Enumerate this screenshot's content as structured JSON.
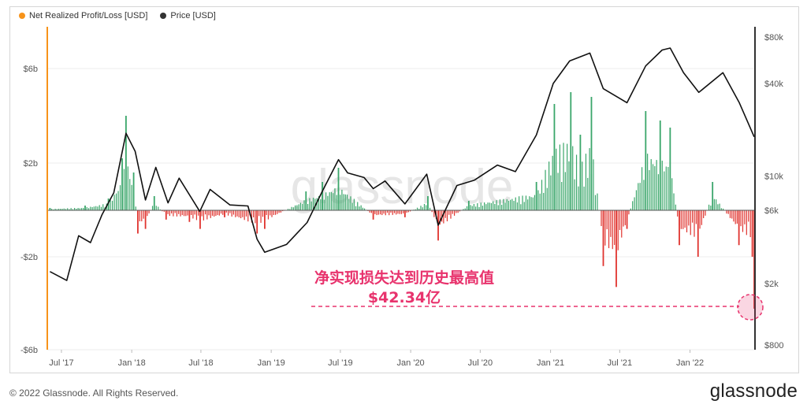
{
  "legend": [
    {
      "label": "Net Realized Profit/Loss [USD]",
      "color": "#f7931a"
    },
    {
      "label": "Price [USD]",
      "color": "#333333"
    }
  ],
  "watermark": "glassnode",
  "annotation": {
    "line1": "净实现损失达到历史最高值",
    "line2": "$42.34亿",
    "color": "#e8336d"
  },
  "footer": {
    "copyright": "© 2022 Glassnode. All Rights Reserved.",
    "logo": "glassnode"
  },
  "chart_data": {
    "type": "bar+line",
    "x_ticks": [
      "Jul '17",
      "Jan '18",
      "Jul '18",
      "Jan '19",
      "Jul '19",
      "Jan '20",
      "Jul '20",
      "Jan '21",
      "Jul '21",
      "Jan '22"
    ],
    "left_axis": {
      "label": "",
      "ticks": [
        "$6b",
        "$2b",
        "-$2b",
        "-$6b"
      ],
      "ylim": [
        -6,
        6
      ],
      "unit": "billion USD"
    },
    "right_axis": {
      "label": "",
      "ticks": [
        "$80k",
        "$40k",
        "$10k",
        "$6k",
        "$2k",
        "$800"
      ],
      "scale": "log"
    },
    "colors": {
      "profit": "#3aa66a",
      "loss": "#e0332e",
      "price": "#111111",
      "axis_left": "#f7931a"
    },
    "series": [
      {
        "name": "Price [USD]",
        "kind": "line",
        "points": [
          [
            "2017-06-01",
            2400
          ],
          [
            "2017-07-15",
            2100
          ],
          [
            "2017-08-15",
            4100
          ],
          [
            "2017-09-15",
            3700
          ],
          [
            "2017-10-15",
            5600
          ],
          [
            "2017-11-15",
            7800
          ],
          [
            "2017-12-17",
            19000
          ],
          [
            "2018-01-10",
            14500
          ],
          [
            "2018-02-06",
            7000
          ],
          [
            "2018-03-05",
            11400
          ],
          [
            "2018-04-06",
            6700
          ],
          [
            "2018-05-05",
            9700
          ],
          [
            "2018-06-28",
            5900
          ],
          [
            "2018-07-25",
            8200
          ],
          [
            "2018-09-15",
            6500
          ],
          [
            "2018-11-01",
            6400
          ],
          [
            "2018-11-25",
            3900
          ],
          [
            "2018-12-15",
            3200
          ],
          [
            "2019-02-10",
            3600
          ],
          [
            "2019-04-05",
            5000
          ],
          [
            "2019-05-15",
            8000
          ],
          [
            "2019-06-26",
            12800
          ],
          [
            "2019-07-20",
            10500
          ],
          [
            "2019-09-01",
            9800
          ],
          [
            "2019-09-25",
            8300
          ],
          [
            "2019-10-26",
            9300
          ],
          [
            "2019-12-17",
            6600
          ],
          [
            "2020-02-12",
            10300
          ],
          [
            "2020-03-13",
            4800
          ],
          [
            "2020-05-01",
            8700
          ],
          [
            "2020-06-15",
            9400
          ],
          [
            "2020-08-15",
            11800
          ],
          [
            "2020-10-01",
            10700
          ],
          [
            "2020-11-25",
            18500
          ],
          [
            "2021-01-08",
            40000
          ],
          [
            "2021-02-20",
            56000
          ],
          [
            "2021-04-14",
            63000
          ],
          [
            "2021-05-19",
            37000
          ],
          [
            "2021-07-20",
            30000
          ],
          [
            "2021-09-07",
            52000
          ],
          [
            "2021-10-20",
            66000
          ],
          [
            "2021-11-10",
            68000
          ],
          [
            "2021-12-15",
            47000
          ],
          [
            "2022-01-24",
            35000
          ],
          [
            "2022-03-28",
            47000
          ],
          [
            "2022-05-10",
            30000
          ],
          [
            "2022-06-18",
            18000
          ]
        ]
      },
      {
        "name": "Net Realized Profit/Loss [USD]",
        "kind": "bar",
        "unit": "billion USD",
        "points": [
          [
            "2017-06-01",
            0.1
          ],
          [
            "2017-09-01",
            0.2
          ],
          [
            "2017-11-01",
            0.5
          ],
          [
            "2017-12-07",
            2.2
          ],
          [
            "2017-12-17",
            4.0
          ],
          [
            "2018-01-06",
            1.6
          ],
          [
            "2018-01-17",
            -1.0
          ],
          [
            "2018-02-06",
            -0.8
          ],
          [
            "2018-03-01",
            0.6
          ],
          [
            "2018-04-01",
            -0.4
          ],
          [
            "2018-06-01",
            -0.5
          ],
          [
            "2018-06-29",
            -0.8
          ],
          [
            "2018-09-01",
            -0.3
          ],
          [
            "2018-11-25",
            -1.0
          ],
          [
            "2018-12-15",
            -0.8
          ],
          [
            "2019-04-02",
            0.8
          ],
          [
            "2019-05-15",
            1.2
          ],
          [
            "2019-06-26",
            1.8
          ],
          [
            "2019-09-25",
            -0.4
          ],
          [
            "2019-12-17",
            -0.3
          ],
          [
            "2020-02-15",
            0.6
          ],
          [
            "2020-03-13",
            -1.3
          ],
          [
            "2020-06-01",
            0.4
          ],
          [
            "2020-11-25",
            1.2
          ],
          [
            "2021-01-11",
            4.5
          ],
          [
            "2021-02-23",
            5.0
          ],
          [
            "2021-03-20",
            3.2
          ],
          [
            "2021-04-18",
            4.8
          ],
          [
            "2021-05-19",
            -2.4
          ],
          [
            "2021-06-22",
            -3.3
          ],
          [
            "2021-07-20",
            -0.8
          ],
          [
            "2021-09-07",
            4.2
          ],
          [
            "2021-10-15",
            3.8
          ],
          [
            "2021-11-10",
            3.5
          ],
          [
            "2021-12-04",
            -1.5
          ],
          [
            "2022-01-22",
            -2.0
          ],
          [
            "2022-03-01",
            1.2
          ],
          [
            "2022-05-09",
            -1.5
          ],
          [
            "2022-06-13",
            -2.0
          ],
          [
            "2022-06-18",
            -4.234
          ]
        ]
      }
    ],
    "grid": true
  }
}
